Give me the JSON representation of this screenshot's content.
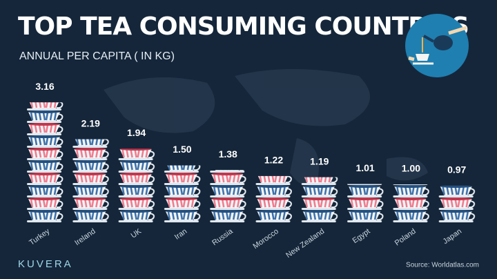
{
  "chart_data": {
    "type": "bar",
    "title": "TOP TEA CONSUMING COUNTRIES",
    "subtitle": "ANNUAL PER CAPITA ( IN KG)",
    "categories": [
      "Turkey",
      "Ireland",
      "UK",
      "Iran",
      "Russia",
      "Morocco",
      "New Zealand",
      "Egypt",
      "Poland",
      "Japan"
    ],
    "values": [
      3.16,
      2.19,
      1.94,
      1.5,
      1.38,
      1.22,
      1.19,
      1.01,
      1.0,
      0.97
    ],
    "value_labels": [
      "3.16",
      "2.19",
      "1.94",
      "1.50",
      "1.38",
      "1.22",
      "1.19",
      "1.01",
      "1.00",
      "0.97"
    ],
    "colors": [
      "#f07a8c",
      "#3a6fa8"
    ],
    "brand": "KUVERA",
    "source": "Source: Worldatlas.com"
  }
}
